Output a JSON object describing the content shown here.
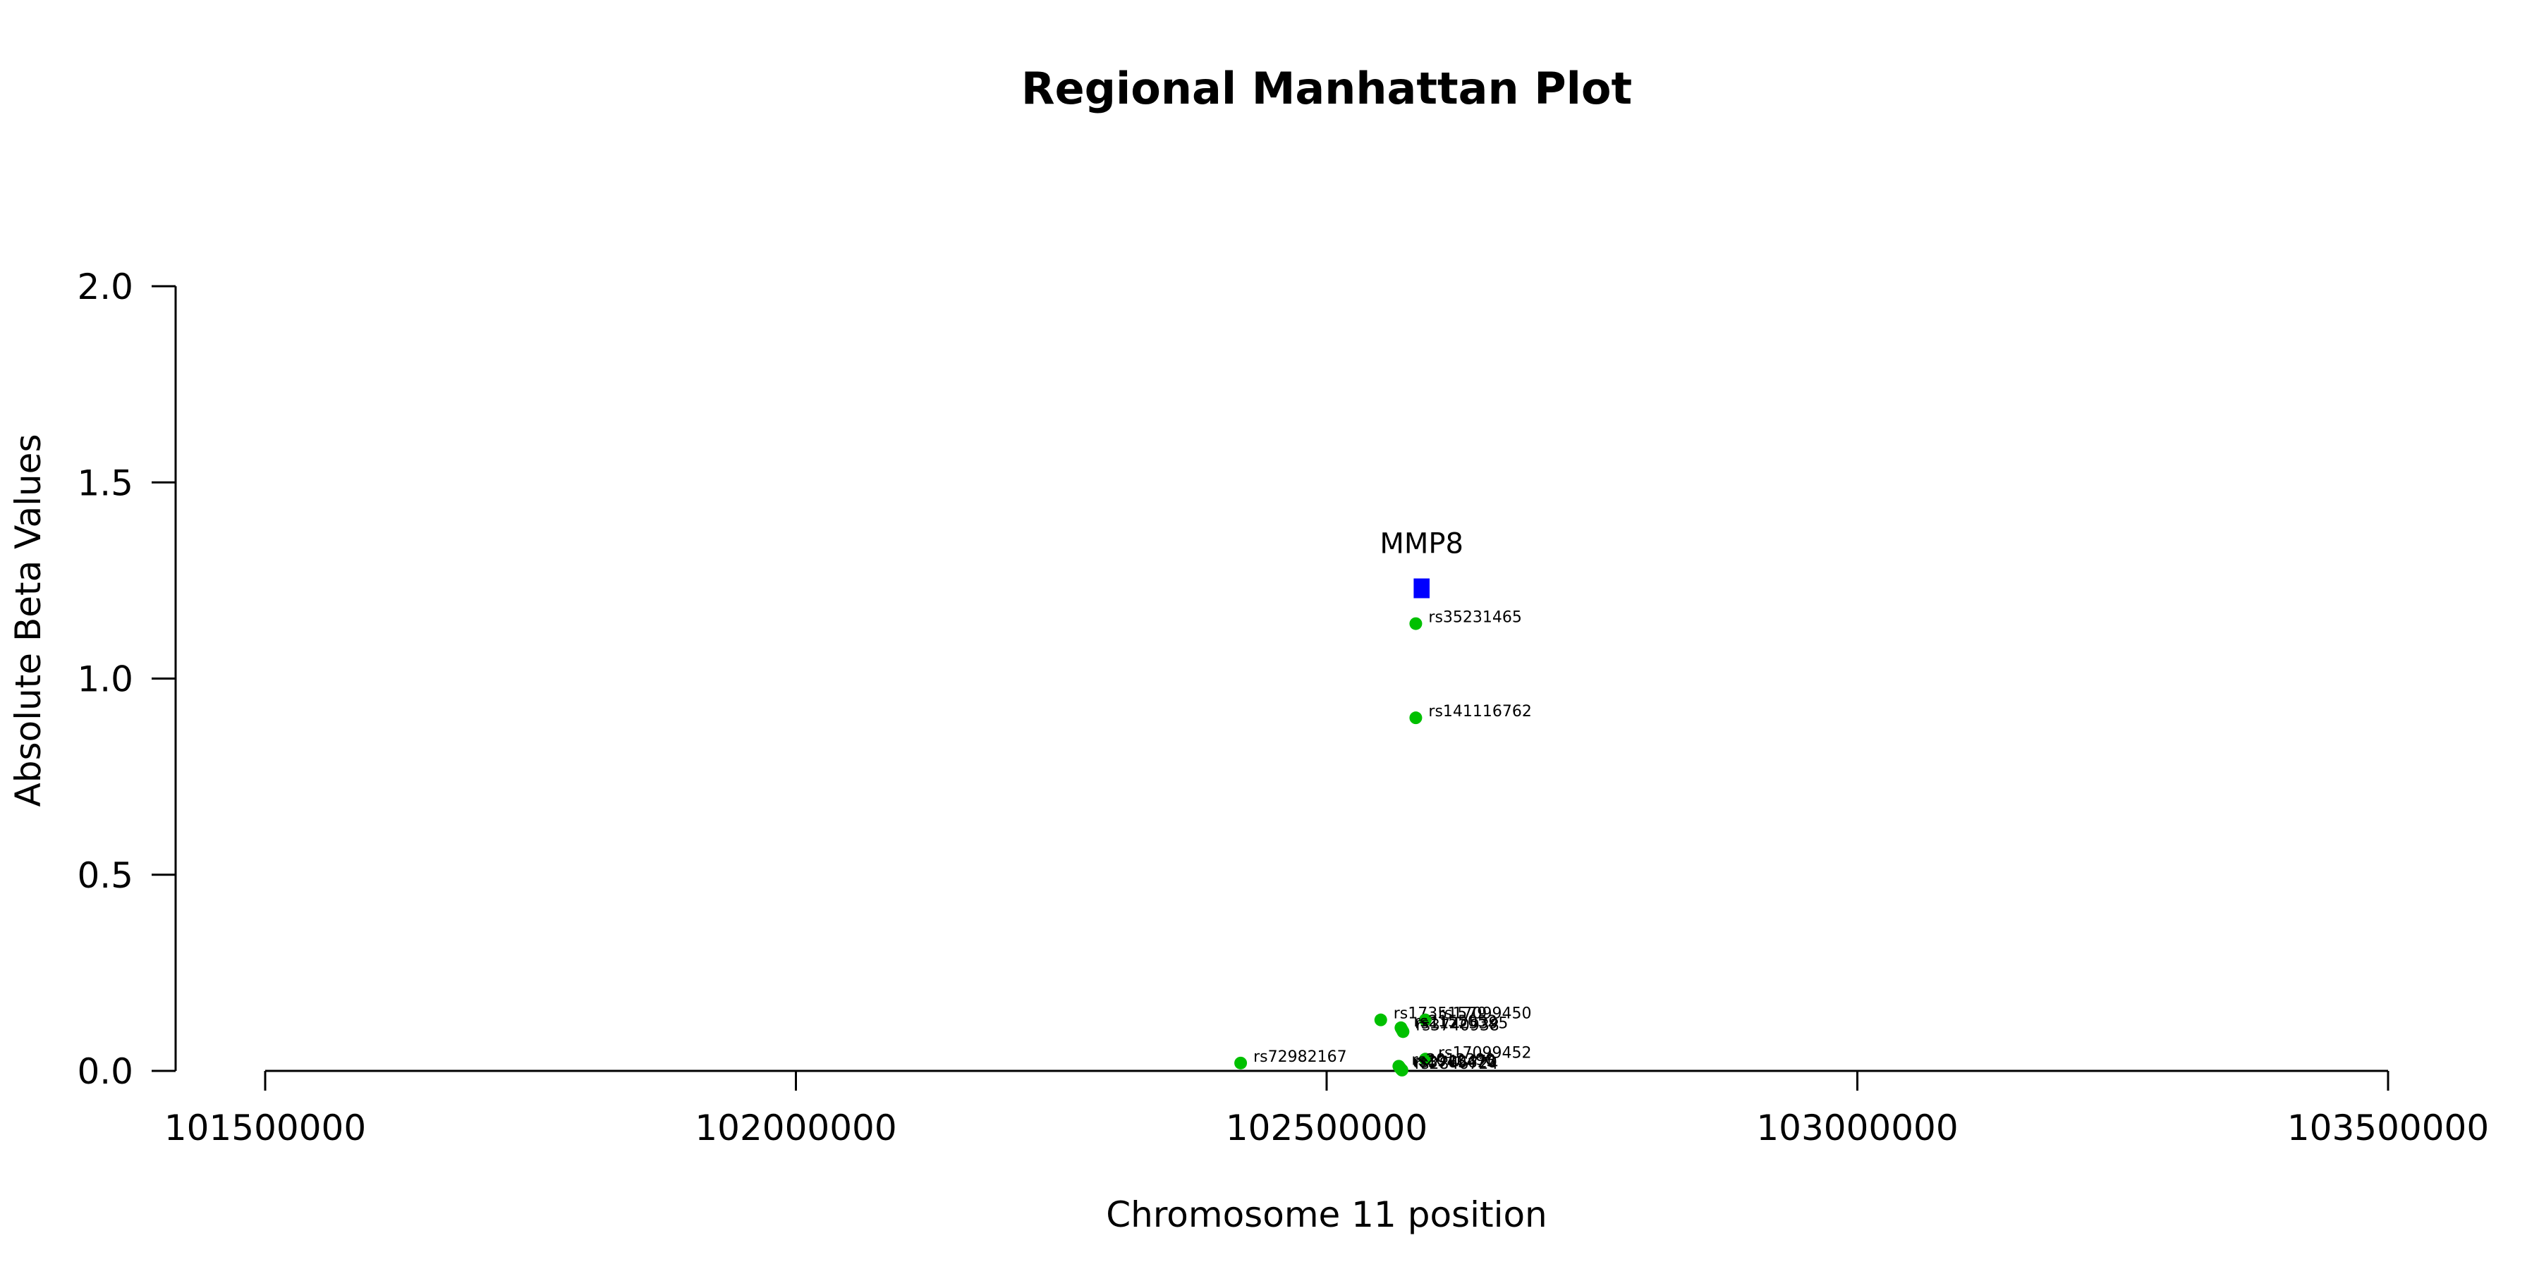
{
  "chart_data": {
    "type": "scatter",
    "title": "Regional Manhattan Plot",
    "xlabel": "Chromosome 11 position",
    "ylabel": "Absolute Beta Values",
    "xlim": [
      101500000,
      103500000
    ],
    "ylim": [
      0,
      2
    ],
    "x_ticks": [
      101500000,
      102000000,
      102500000,
      103000000,
      103500000
    ],
    "x_tick_labels": [
      "101500000",
      "102000000",
      "102500000",
      "103000000",
      "103500000"
    ],
    "y_ticks": [
      0,
      0.5,
      1,
      1.5,
      2
    ],
    "y_tick_labels": [
      "0.0",
      "0.5",
      "1.0",
      "1.5",
      "2.0"
    ],
    "grid": false,
    "point_color": "#00c000",
    "gene_color": "#0000ff",
    "gene": {
      "name": "MMP8",
      "start": 102582000,
      "end": 102597000,
      "y": 1.23
    },
    "points": [
      {
        "id": "rs35231465",
        "x": 102584000,
        "y": 1.14
      },
      {
        "id": "rs141116762",
        "x": 102584000,
        "y": 0.9
      },
      {
        "id": "rs17351579",
        "x": 102551000,
        "y": 0.13
      },
      {
        "id": "rs17099450",
        "x": 102593000,
        "y": 0.13
      },
      {
        "id": "rs2155052",
        "x": 102570000,
        "y": 0.11
      },
      {
        "id": "rs11225395",
        "x": 102571000,
        "y": 0.105
      },
      {
        "id": "rs3740938",
        "x": 102572000,
        "y": 0.1
      },
      {
        "id": "rs17099452",
        "x": 102593000,
        "y": 0.03
      },
      {
        "id": "rs72982167",
        "x": 102419000,
        "y": 0.02
      },
      {
        "id": "rs2012390",
        "x": 102568000,
        "y": 0.012
      },
      {
        "id": "rs1940475",
        "x": 102569000,
        "y": 0.008
      },
      {
        "id": "rs3765620",
        "x": 102570000,
        "y": 0.005
      },
      {
        "id": "rs2846724",
        "x": 102571000,
        "y": 0.002
      }
    ]
  }
}
